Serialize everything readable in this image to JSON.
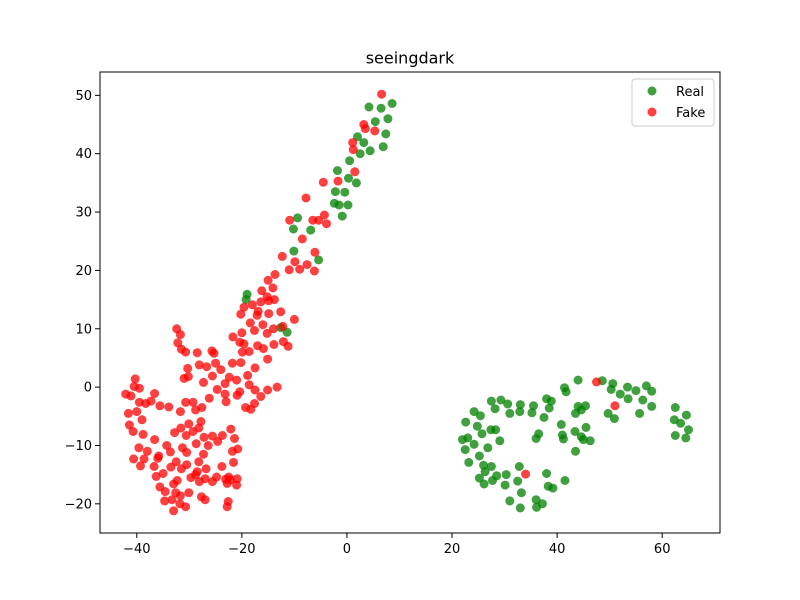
{
  "chart_data": {
    "type": "scatter",
    "title": "seeingdark",
    "xlabel": "",
    "ylabel": "",
    "xlim": [
      -47,
      71
    ],
    "ylim": [
      -25,
      54
    ],
    "xticks": [
      -40,
      -20,
      0,
      20,
      40,
      60
    ],
    "yticks": [
      -20,
      -10,
      0,
      10,
      20,
      30,
      40,
      50
    ],
    "grid": false,
    "legend_position": "top-right",
    "series": [
      {
        "name": "Real",
        "color": "#008000",
        "points": [
          [
            8.6,
            48.6
          ],
          [
            4.2,
            48.0
          ],
          [
            6.5,
            47.8
          ],
          [
            7.8,
            46.0
          ],
          [
            5.4,
            45.5
          ],
          [
            7.4,
            43.4
          ],
          [
            2.0,
            42.9
          ],
          [
            3.2,
            41.9
          ],
          [
            6.9,
            41.2
          ],
          [
            4.4,
            40.5
          ],
          [
            2.5,
            40.0
          ],
          [
            0.5,
            38.8
          ],
          [
            -1.8,
            37.1
          ],
          [
            0.3,
            35.8
          ],
          [
            1.8,
            35.0
          ],
          [
            -2.2,
            33.5
          ],
          [
            -0.4,
            33.4
          ],
          [
            -2.4,
            31.5
          ],
          [
            0.2,
            31.2
          ],
          [
            -1.5,
            31.2
          ],
          [
            -0.9,
            29.3
          ],
          [
            -9.4,
            29.0
          ],
          [
            -10.2,
            27.1
          ],
          [
            -6.9,
            26.9
          ],
          [
            -5.4,
            21.8
          ],
          [
            -10.1,
            23.3
          ],
          [
            -19.0,
            15.9
          ],
          [
            -19.2,
            15.0
          ],
          [
            -12.6,
            10.2
          ],
          [
            -11.4,
            9.4
          ],
          [
            22.0,
            -9.0
          ],
          [
            22.6,
            -6.0
          ],
          [
            24.2,
            -4.2
          ],
          [
            24.8,
            -6.7
          ],
          [
            25.4,
            -4.9
          ],
          [
            23.0,
            -8.7
          ],
          [
            24.2,
            -9.8
          ],
          [
            22.5,
            -10.7
          ],
          [
            25.2,
            -11.8
          ],
          [
            23.2,
            -12.9
          ],
          [
            26.0,
            -13.4
          ],
          [
            26.3,
            -14.5
          ],
          [
            25.2,
            -15.6
          ],
          [
            26.1,
            -16.6
          ],
          [
            27.7,
            -16.0
          ],
          [
            25.7,
            -8.0
          ],
          [
            26.8,
            -10.4
          ],
          [
            27.4,
            -7.3
          ],
          [
            27.5,
            -2.4
          ],
          [
            28.2,
            -3.7
          ],
          [
            28.3,
            -7.3
          ],
          [
            29.1,
            -9.2
          ],
          [
            29.3,
            -2.2
          ],
          [
            30.6,
            -2.9
          ],
          [
            31.0,
            -4.5
          ],
          [
            27.5,
            -13.6
          ],
          [
            28.5,
            -15.2
          ],
          [
            30.3,
            -15.0
          ],
          [
            30.1,
            -16.8
          ],
          [
            31.0,
            -19.5
          ],
          [
            32.5,
            -16.1
          ],
          [
            32.8,
            -13.6
          ],
          [
            33.2,
            -18.1
          ],
          [
            33.0,
            -20.7
          ],
          [
            32.9,
            -4.2
          ],
          [
            33.0,
            -3.0
          ],
          [
            35.2,
            -4.4
          ],
          [
            35.5,
            -3.2
          ],
          [
            36.0,
            -8.8
          ],
          [
            36.5,
            -8.0
          ],
          [
            36.0,
            -19.3
          ],
          [
            36.1,
            -20.6
          ],
          [
            37.2,
            -20.0
          ],
          [
            37.5,
            -5.2
          ],
          [
            38.0,
            -2.0
          ],
          [
            38.9,
            -2.4
          ],
          [
            38.5,
            -3.6
          ],
          [
            38.0,
            -14.8
          ],
          [
            38.3,
            -17.0
          ],
          [
            39.2,
            -17.3
          ],
          [
            41.5,
            -16.0
          ],
          [
            41.2,
            -8.9
          ],
          [
            41.0,
            -8.2
          ],
          [
            40.8,
            -6.4
          ],
          [
            41.4,
            -0.1
          ],
          [
            41.7,
            -0.8
          ],
          [
            43.4,
            -7.6
          ],
          [
            43.5,
            -11.0
          ],
          [
            43.5,
            -4.5
          ],
          [
            44.0,
            1.2
          ],
          [
            44.0,
            -3.3
          ],
          [
            44.6,
            -3.9
          ],
          [
            44.6,
            -8.5
          ],
          [
            45.0,
            -9.0
          ],
          [
            45.5,
            -6.9
          ],
          [
            45.4,
            -3.2
          ],
          [
            46.3,
            -9.2
          ],
          [
            48.6,
            1.1
          ],
          [
            49.7,
            -4.5
          ],
          [
            50.3,
            -0.4
          ],
          [
            50.6,
            0.6
          ],
          [
            50.9,
            -5.4
          ],
          [
            52.0,
            -1.2
          ],
          [
            53.5,
            -2.0
          ],
          [
            53.4,
            0.0
          ],
          [
            55.0,
            -0.6
          ],
          [
            55.7,
            -4.5
          ],
          [
            56.3,
            -2.2
          ],
          [
            57.0,
            0.2
          ],
          [
            58.0,
            -0.7
          ],
          [
            58.0,
            -3.3
          ],
          [
            62.5,
            -3.5
          ],
          [
            62.3,
            -5.6
          ],
          [
            62.5,
            -8.3
          ],
          [
            63.5,
            -6.2
          ],
          [
            64.6,
            -4.8
          ],
          [
            64.5,
            -8.7
          ],
          [
            65.0,
            -7.3
          ]
        ]
      },
      {
        "name": "Fake",
        "color": "#ff0000",
        "points": [
          [
            6.6,
            50.2
          ],
          [
            3.2,
            45.0
          ],
          [
            3.5,
            44.3
          ],
          [
            5.3,
            43.9
          ],
          [
            1.1,
            41.9
          ],
          [
            1.2,
            40.7
          ],
          [
            -1.7,
            35.3
          ],
          [
            -4.5,
            35.1
          ],
          [
            1.5,
            36.9
          ],
          [
            -4.3,
            29.5
          ],
          [
            -3.9,
            28.0
          ],
          [
            -5.4,
            28.6
          ],
          [
            -6.5,
            28.6
          ],
          [
            -7.8,
            32.4
          ],
          [
            -10.9,
            28.6
          ],
          [
            -8.5,
            25.4
          ],
          [
            -6.1,
            23.1
          ],
          [
            -7.6,
            21.0
          ],
          [
            -6.2,
            19.9
          ],
          [
            -9.9,
            21.5
          ],
          [
            -9.0,
            20.2
          ],
          [
            -11.0,
            20.1
          ],
          [
            -12.3,
            22.4
          ],
          [
            -13.7,
            19.3
          ],
          [
            -15.0,
            18.3
          ],
          [
            -14.1,
            17.0
          ],
          [
            -16.2,
            16.5
          ],
          [
            -15.2,
            15.5
          ],
          [
            -13.8,
            15.0
          ],
          [
            -14.9,
            14.8
          ],
          [
            -16.4,
            14.6
          ],
          [
            -18.0,
            14.1
          ],
          [
            -19.6,
            13.7
          ],
          [
            -16.9,
            13.0
          ],
          [
            -12.6,
            12.9
          ],
          [
            -14.9,
            12.6
          ],
          [
            -20.2,
            12.5
          ],
          [
            -17.1,
            12.3
          ],
          [
            -18.4,
            11.0
          ],
          [
            -16.0,
            10.7
          ],
          [
            -10.0,
            11.6
          ],
          [
            -14.0,
            10.0
          ],
          [
            -12.2,
            10.4
          ],
          [
            -15.2,
            9.2
          ],
          [
            -17.6,
            9.7
          ],
          [
            -20.0,
            9.3
          ],
          [
            -21.7,
            8.6
          ],
          [
            -20.4,
            7.7
          ],
          [
            -19.6,
            7.4
          ],
          [
            -19.9,
            6.0
          ],
          [
            -18.6,
            6.1
          ],
          [
            -17.0,
            7.1
          ],
          [
            -13.9,
            7.3
          ],
          [
            -15.9,
            6.6
          ],
          [
            -12.1,
            7.8
          ],
          [
            -11.2,
            7.0
          ],
          [
            -15.1,
            4.8
          ],
          [
            -17.5,
            3.3
          ],
          [
            -20.2,
            4.2
          ],
          [
            -21.8,
            4.1
          ],
          [
            -25.3,
            5.8
          ],
          [
            -25.7,
            6.2
          ],
          [
            -25.0,
            4.1
          ],
          [
            -24.0,
            3.0
          ],
          [
            -26.7,
            3.5
          ],
          [
            -28.1,
            3.8
          ],
          [
            -30.7,
            6.0
          ],
          [
            -28.5,
            5.9
          ],
          [
            -31.7,
            9.0
          ],
          [
            -32.4,
            10.0
          ],
          [
            -32.2,
            7.6
          ],
          [
            -31.5,
            6.5
          ],
          [
            -30.3,
            3.2
          ],
          [
            -31.0,
            1.5
          ],
          [
            -30.2,
            1.8
          ],
          [
            -27.3,
            0.8
          ],
          [
            -25.6,
            1.9
          ],
          [
            -24.7,
            -0.4
          ],
          [
            -23.2,
            0.6
          ],
          [
            -22.4,
            1.7
          ],
          [
            -21.0,
            1.2
          ],
          [
            -18.9,
            2.0
          ],
          [
            -18.6,
            0.4
          ],
          [
            -17.5,
            -0.5
          ],
          [
            -15.1,
            -0.5
          ],
          [
            -13.3,
            0.0
          ],
          [
            -16.4,
            -1.6
          ],
          [
            -17.6,
            -2.8
          ],
          [
            -19.3,
            -3.5
          ],
          [
            -18.3,
            -3.8
          ],
          [
            -20.4,
            -0.8
          ],
          [
            -20.9,
            -1.4
          ],
          [
            -23.2,
            -1.2
          ],
          [
            -23.0,
            -2.5
          ],
          [
            -26.2,
            -1.9
          ],
          [
            -28.8,
            -3.9
          ],
          [
            -27.6,
            -3.5
          ],
          [
            -29.3,
            -2.6
          ],
          [
            -30.7,
            -2.6
          ],
          [
            -31.7,
            -4.2
          ],
          [
            -33.9,
            -3.4
          ],
          [
            -35.6,
            -3.2
          ],
          [
            -37.3,
            -2.4
          ],
          [
            -36.6,
            -1.1
          ],
          [
            -38.3,
            -2.8
          ],
          [
            -40.0,
            -4.2
          ],
          [
            -39.5,
            -2.6
          ],
          [
            -41.1,
            -1.5
          ],
          [
            -40.5,
            0.1
          ],
          [
            -40.3,
            1.4
          ],
          [
            -39.5,
            -0.2
          ],
          [
            -42.1,
            -1.2
          ],
          [
            -41.6,
            -4.5
          ],
          [
            -39.0,
            -5.6
          ],
          [
            -38.8,
            -8.1
          ],
          [
            -41.4,
            -6.5
          ],
          [
            -40.7,
            -7.6
          ],
          [
            -36.6,
            -9.0
          ],
          [
            -36.0,
            -12.2
          ],
          [
            -36.3,
            -15.3
          ],
          [
            -35.0,
            -14.8
          ],
          [
            -35.6,
            -17.1
          ],
          [
            -34.6,
            -17.9
          ],
          [
            -34.7,
            -19.5
          ],
          [
            -33.5,
            -13.7
          ],
          [
            -32.5,
            -12.8
          ],
          [
            -33.0,
            -16.6
          ],
          [
            -32.3,
            -16.0
          ],
          [
            -32.6,
            -18.1
          ],
          [
            -33.3,
            -19.3
          ],
          [
            -33.0,
            -21.2
          ],
          [
            -31.8,
            -20.0
          ],
          [
            -31.5,
            -14.0
          ],
          [
            -30.5,
            -13.3
          ],
          [
            -31.7,
            -18.6
          ],
          [
            -30.7,
            -20.5
          ],
          [
            -30.1,
            -18.1
          ],
          [
            -29.7,
            -15.5
          ],
          [
            -28.8,
            -15.0
          ],
          [
            -28.1,
            -16.2
          ],
          [
            -28.5,
            -14.5
          ],
          [
            -27.0,
            -15.7
          ],
          [
            -26.8,
            -14.0
          ],
          [
            -27.3,
            -11.5
          ],
          [
            -28.2,
            -12.8
          ],
          [
            -27.7,
            -18.8
          ],
          [
            -27.0,
            -19.3
          ],
          [
            -25.6,
            -16.2
          ],
          [
            -24.8,
            -15.4
          ],
          [
            -23.8,
            -13.6
          ],
          [
            -23.1,
            -15.8
          ],
          [
            -22.5,
            -15.4
          ],
          [
            -21.0,
            -16.8
          ],
          [
            -21.6,
            -12.9
          ],
          [
            -21.8,
            -11.0
          ],
          [
            -20.8,
            -10.6
          ],
          [
            -21.4,
            -8.8
          ],
          [
            -22.1,
            -7.2
          ],
          [
            -23.7,
            -8.3
          ],
          [
            -24.6,
            -9.3
          ],
          [
            -25.6,
            -8.4
          ],
          [
            -26.4,
            -10.0
          ],
          [
            -27.2,
            -8.6
          ],
          [
            -28.7,
            -9.7
          ],
          [
            -28.2,
            -7.0
          ],
          [
            -27.8,
            -5.9
          ],
          [
            -29.3,
            -7.6
          ],
          [
            -30.6,
            -8.3
          ],
          [
            -30.1,
            -6.3
          ],
          [
            -31.6,
            -7.0
          ],
          [
            -32.8,
            -7.8
          ],
          [
            -31.3,
            -10.4
          ],
          [
            -30.5,
            -11.2
          ],
          [
            -33.6,
            -11.1
          ],
          [
            -34.3,
            -10.0
          ],
          [
            -35.8,
            -11.8
          ],
          [
            -38.0,
            -11.0
          ],
          [
            -38.6,
            -12.3
          ],
          [
            -39.3,
            -13.5
          ],
          [
            -40.6,
            -12.3
          ],
          [
            -39.6,
            -10.4
          ],
          [
            -36.7,
            -13.6
          ],
          [
            -22.8,
            -20.5
          ],
          [
            -22.6,
            -19.6
          ],
          [
            -22.2,
            -15.9
          ],
          [
            -20.9,
            -15.7
          ],
          [
            -22.8,
            -16.5
          ],
          [
            47.5,
            0.9
          ],
          [
            51.0,
            -3.2
          ],
          [
            34.0,
            -14.9
          ]
        ]
      }
    ]
  }
}
